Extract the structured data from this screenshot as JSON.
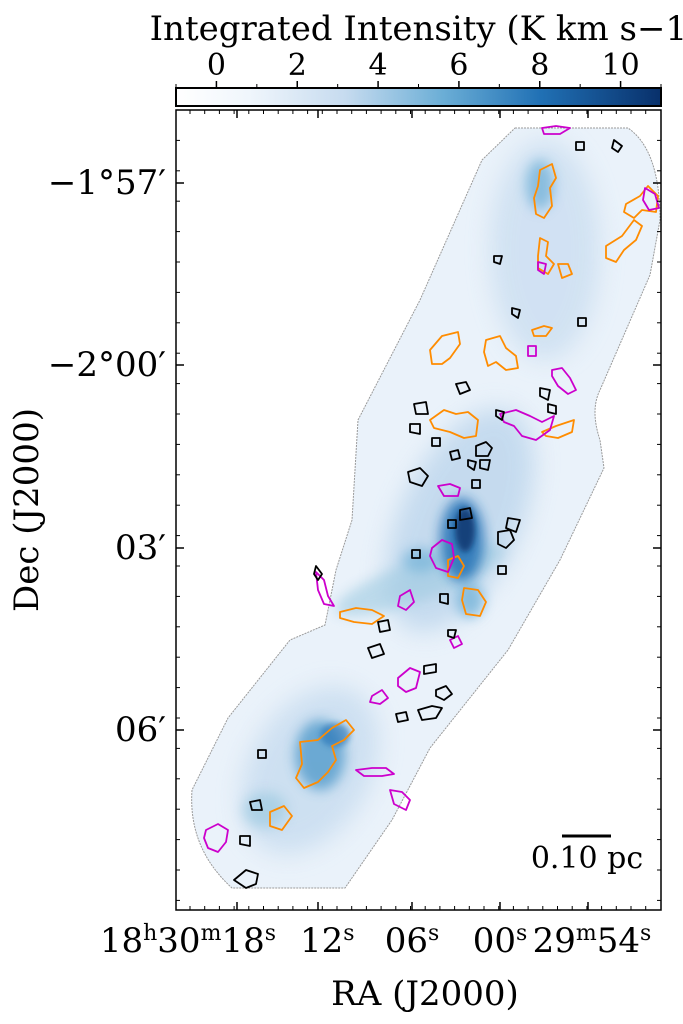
{
  "chart_data": {
    "type": "heatmap",
    "colorbar": {
      "label": "Integrated Intensity (K km s$^{-1}$)",
      "label_display": "Integrated Intensity (K km s−1)",
      "ticks": [
        "0",
        "2",
        "4",
        "6",
        "8",
        "10"
      ],
      "tick_values": [
        0,
        2,
        4,
        6,
        8,
        10
      ],
      "range": [
        -1,
        11
      ],
      "colormap": "Blues"
    },
    "xlabel": "RA (J2000)",
    "ylabel": "Dec (J2000)",
    "x_ticks": [
      {
        "h": "18",
        "hs": "h",
        "m": "30",
        "ms": "m",
        "s": "18",
        "ss": "s"
      },
      {
        "s": "12",
        "ss": "s"
      },
      {
        "s": "06",
        "ss": "s"
      },
      {
        "s": "00",
        "ss": "s"
      },
      {
        "m": "29",
        "ms": "m",
        "s": "54",
        "ss": "s"
      }
    ],
    "y_ticks": [
      "−1°57′",
      "−2°00′",
      "03′",
      "06′"
    ],
    "scalebar": "0.10 pc",
    "contour_colors": {
      "black": "#000000",
      "orange": "#ff8c00",
      "magenta": "#cc00cc"
    },
    "grid": false,
    "ridge_orientation": "northeast to southwest",
    "peak_region": "center (~−2°02.7′)"
  },
  "colors": {
    "cmap_low": "#f7fbff",
    "cmap_mid": "#6baed6",
    "cmap_high": "#08306b",
    "map_edge": "#9a9a9a"
  }
}
